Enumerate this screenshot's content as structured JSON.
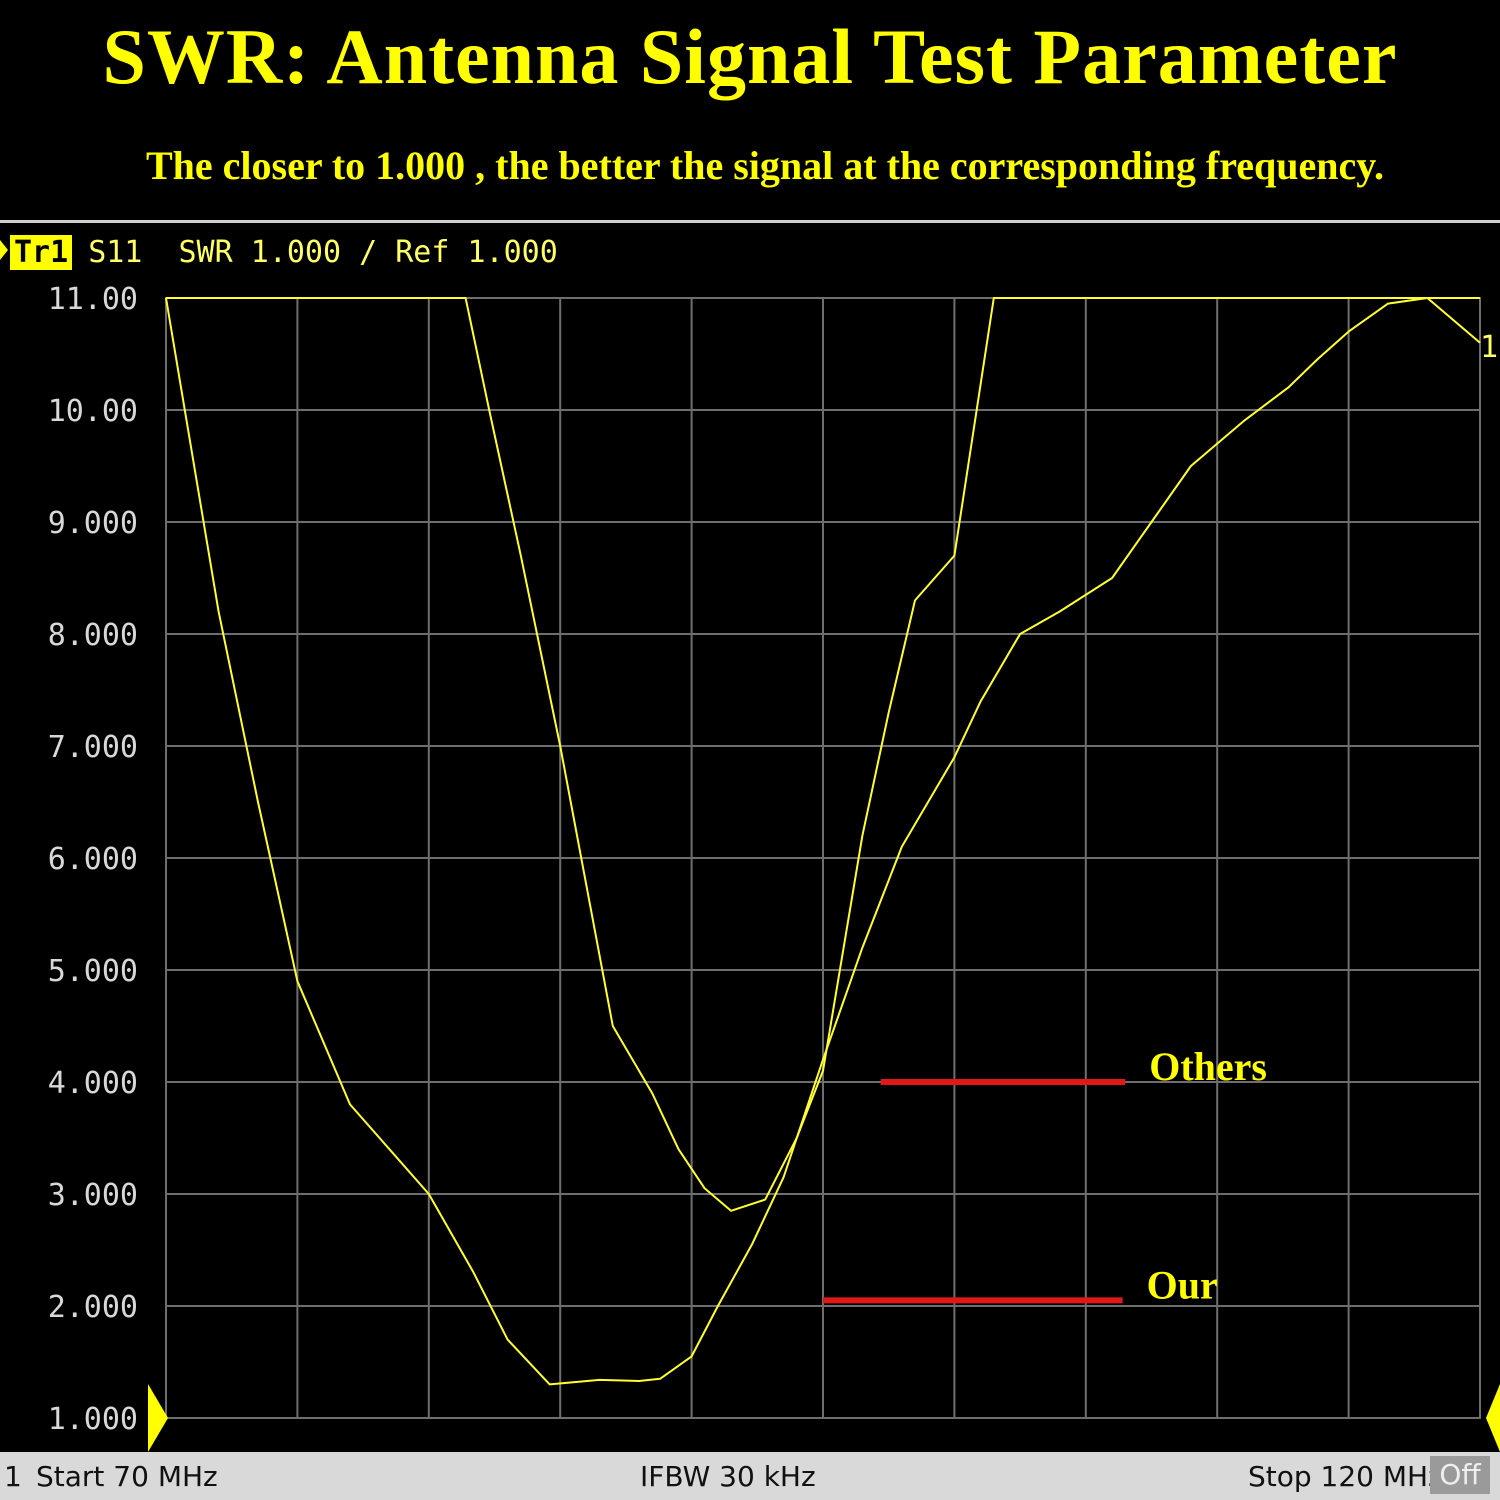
{
  "header": {
    "title": "SWR: Antenna Signal Test Parameter",
    "subtitle": "The closer to 1.000 , the better the signal at the corresponding frequency."
  },
  "trace": {
    "badge": "Tr1",
    "label": "S11  SWR 1.000 / Ref 1.000",
    "marker_label": "1"
  },
  "status": {
    "channel": "1",
    "start": "Start 70 MHz",
    "ifbw": "IFBW 30 kHz",
    "stop": "Stop 120 MHz",
    "off": "Off"
  },
  "colors": {
    "trace": "#ffff33",
    "grid": "#6e6e6e",
    "annotation_line": "#e21818",
    "text": "#ffff00"
  },
  "chart_data": {
    "type": "line",
    "title": "",
    "xlabel": "",
    "ylabel": "",
    "xlim": [
      70,
      120
    ],
    "ylim": [
      1,
      11
    ],
    "y_ticks": [
      "11.00",
      "10.00",
      "9.000",
      "8.000",
      "7.000",
      "6.000",
      "5.000",
      "4.000",
      "3.000",
      "2.000",
      "1.000"
    ],
    "grid": true,
    "series": [
      {
        "name": "Our",
        "x": [
          70,
          72,
          73.5,
          75,
          77,
          78.5,
          80,
          81.7,
          83,
          84.6,
          86.5,
          88,
          88.8,
          90,
          91,
          92.3,
          93.5,
          95,
          96.5,
          98,
          99,
          100,
          101,
          102.5,
          104,
          106,
          107.5,
          109,
          111,
          112.7,
          113.8,
          115,
          116.5,
          118,
          120
        ],
        "y": [
          11,
          8.2,
          6.5,
          4.9,
          3.8,
          3.4,
          3.0,
          2.3,
          1.7,
          1.3,
          1.34,
          1.33,
          1.35,
          1.55,
          2.0,
          2.55,
          3.15,
          4.2,
          5.2,
          6.1,
          6.5,
          6.9,
          7.4,
          8.0,
          8.2,
          8.5,
          9.0,
          9.5,
          9.9,
          10.2,
          10.45,
          10.7,
          10.95,
          11.0,
          10.6
        ]
      },
      {
        "name": "Others",
        "x": [
          70,
          81.4,
          82.3,
          83.5,
          85,
          87,
          88.5,
          89.5,
          90.5,
          91.5,
          92.8,
          94,
          95,
          96.5,
          97.5,
          98.5,
          100,
          101.5,
          120
        ],
        "y": [
          11,
          11,
          10,
          8.7,
          7.0,
          4.5,
          3.9,
          3.4,
          3.05,
          2.85,
          2.95,
          3.5,
          4.1,
          6.2,
          7.3,
          8.3,
          8.7,
          11,
          11
        ]
      }
    ],
    "annotations": [
      {
        "label": "Others",
        "y": 4.0,
        "x_from": 97.2,
        "x_to": 106.5
      },
      {
        "label": "Our",
        "y": 2.05,
        "x_from": 95.0,
        "x_to": 106.4
      }
    ]
  }
}
